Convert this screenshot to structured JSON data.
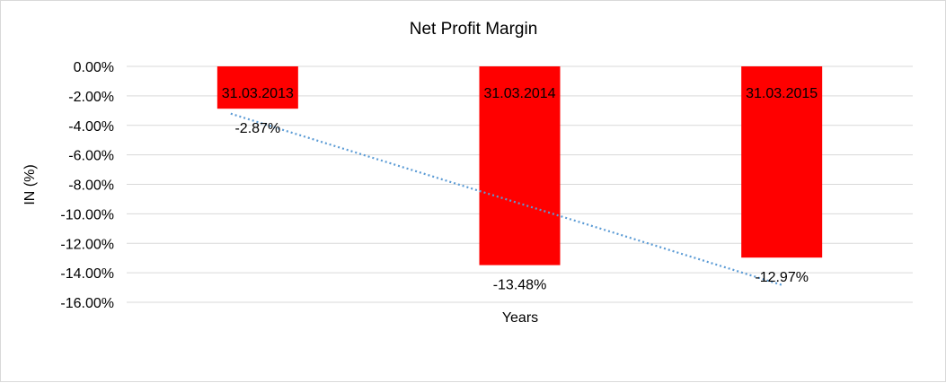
{
  "chart_data": {
    "type": "bar",
    "title": "Net Profit Margin",
    "xlabel": "Years",
    "ylabel": "IN (%)",
    "categories": [
      "31.03.2013",
      "31.03.2014",
      "31.03.2015"
    ],
    "values": [
      -2.87,
      -13.48,
      -12.97
    ],
    "data_labels": [
      "-2.87%",
      "-13.48%",
      "-12.97%"
    ],
    "ylim": [
      -16,
      0
    ],
    "yticks": [
      "0.00%",
      "-2.00%",
      "-4.00%",
      "-6.00%",
      "-8.00%",
      "-10.00%",
      "-12.00%",
      "-14.00%",
      "-16.00%"
    ],
    "ytick_values": [
      0,
      -2,
      -4,
      -6,
      -8,
      -10,
      -12,
      -14,
      -16
    ],
    "grid": true,
    "trendline": "linear",
    "colors": {
      "bar": "#ff0000",
      "trendline": "#5b9bd5",
      "grid": "#d9d9d9"
    }
  }
}
